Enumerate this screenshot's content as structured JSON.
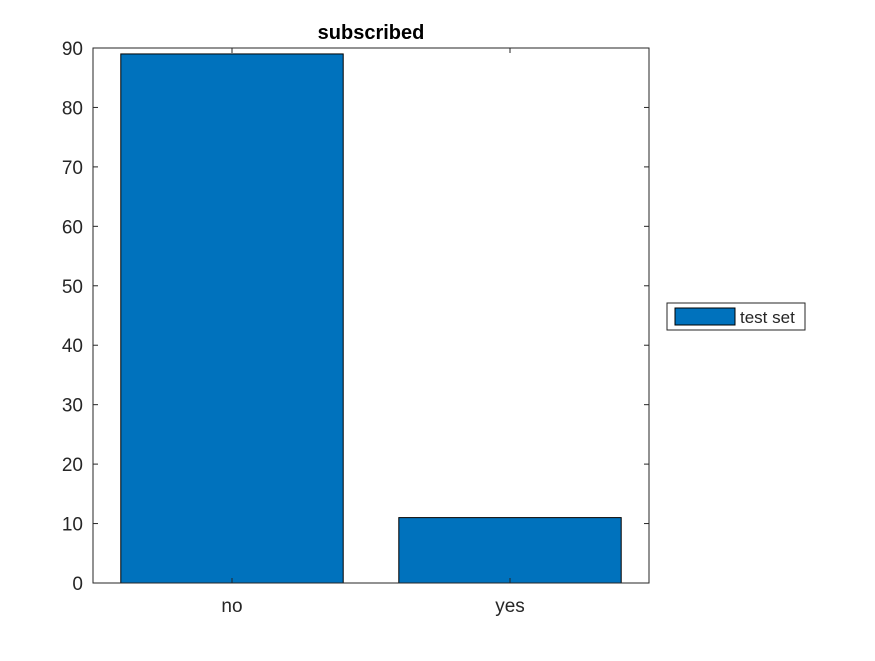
{
  "chart_data": {
    "type": "bar",
    "title": "subscribed",
    "categories": [
      "no",
      "yes"
    ],
    "series": [
      {
        "name": "test set",
        "values": [
          89,
          11
        ],
        "color": "#0072bd"
      }
    ],
    "ylim": [
      0,
      90
    ],
    "yticks": [
      0,
      10,
      20,
      30,
      40,
      50,
      60,
      70,
      80,
      90
    ],
    "xlabel": "",
    "ylabel": "",
    "grid": false,
    "legend": {
      "placement": "outside-right",
      "entries": [
        "test set"
      ]
    }
  }
}
